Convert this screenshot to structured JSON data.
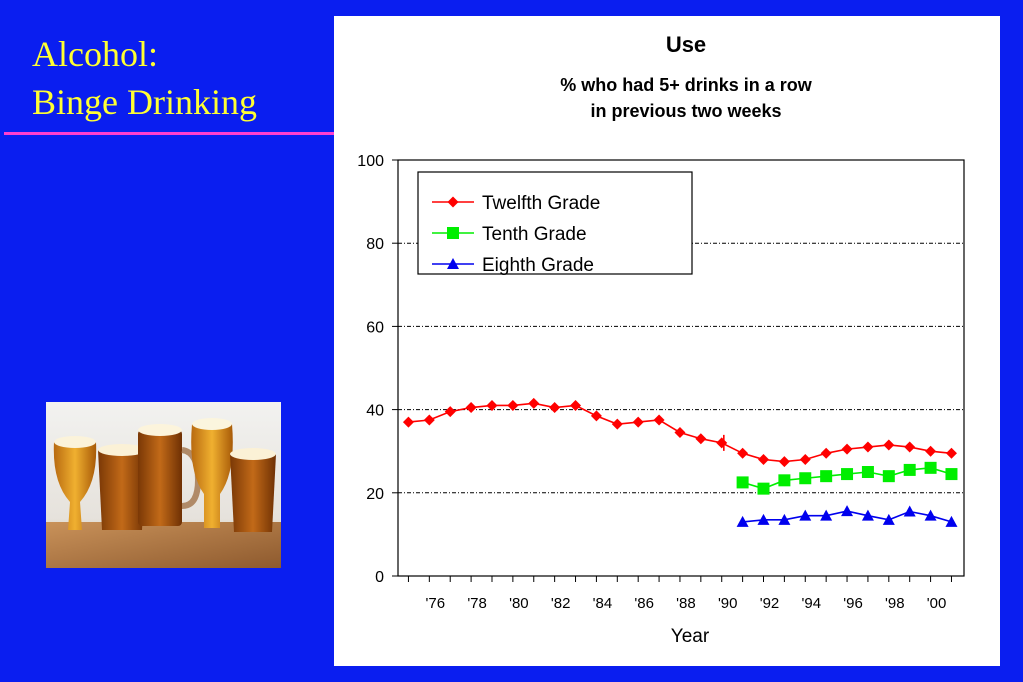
{
  "slide": {
    "title_line1": "Alcohol:",
    "title_line2": "Binge Drinking"
  },
  "colors": {
    "background": "#0a1ef0",
    "title_text": "#ffff33",
    "title_rule": "#ff3fd0",
    "twelfth": "#ff0000",
    "tenth": "#00ee00",
    "eighth": "#0000ee"
  },
  "chart_data": {
    "type": "line",
    "title": "Use",
    "subtitle_line1": "% who had 5+ drinks in a row",
    "subtitle_line2": "in previous two weeks",
    "xlabel": "Year",
    "ylabel": "",
    "xlim": [
      1974.5,
      2001.6
    ],
    "ylim": [
      0,
      100
    ],
    "y_ticks": [
      0,
      20,
      40,
      60,
      80,
      100
    ],
    "y_gridlines": [
      20,
      40,
      60,
      80
    ],
    "x_tick_labels": [
      {
        "year": 1976,
        "label": "'76"
      },
      {
        "year": 1978,
        "label": "'78"
      },
      {
        "year": 1980,
        "label": "'80"
      },
      {
        "year": 1982,
        "label": "'82"
      },
      {
        "year": 1984,
        "label": "'84"
      },
      {
        "year": 1986,
        "label": "'86"
      },
      {
        "year": 1988,
        "label": "'88"
      },
      {
        "year": 1990,
        "label": "'90"
      },
      {
        "year": 1992,
        "label": "'92"
      },
      {
        "year": 1994,
        "label": "'94"
      },
      {
        "year": 1996,
        "label": "'96"
      },
      {
        "year": 1998,
        "label": "'98"
      },
      {
        "year": 2000,
        "label": "'00"
      }
    ],
    "legend_position": "top-left",
    "series": [
      {
        "name": "Twelfth Grade",
        "marker": "diamond",
        "color": "#ff0000",
        "x": [
          1975,
          1976,
          1977,
          1978,
          1979,
          1980,
          1981,
          1982,
          1983,
          1984,
          1985,
          1986,
          1987,
          1988,
          1989,
          1990,
          1991,
          1992,
          1993,
          1994,
          1995,
          1996,
          1997,
          1998,
          1999,
          2000,
          2001
        ],
        "values": [
          37,
          37.5,
          39.5,
          40.5,
          41,
          41,
          41.5,
          40.5,
          41,
          38.5,
          36.5,
          37,
          37.5,
          34.5,
          33,
          32,
          29.5,
          28,
          27.5,
          28,
          29.5,
          30.5,
          31,
          31.5,
          31,
          30,
          29.5
        ]
      },
      {
        "name": "Tenth Grade",
        "marker": "square",
        "color": "#00ee00",
        "x": [
          1991,
          1992,
          1993,
          1994,
          1995,
          1996,
          1997,
          1998,
          1999,
          2000,
          2001
        ],
        "values": [
          22.5,
          21,
          23,
          23.5,
          24,
          24.5,
          25,
          24,
          25.5,
          26,
          24.5
        ]
      },
      {
        "name": "Eighth Grade",
        "marker": "triangle",
        "color": "#0000ee",
        "x": [
          1991,
          1992,
          1993,
          1994,
          1995,
          1996,
          1997,
          1998,
          1999,
          2000,
          2001
        ],
        "values": [
          13,
          13.5,
          13.5,
          14.5,
          14.5,
          15.6,
          14.5,
          13.5,
          15.5,
          14.5,
          13
        ]
      }
    ]
  }
}
